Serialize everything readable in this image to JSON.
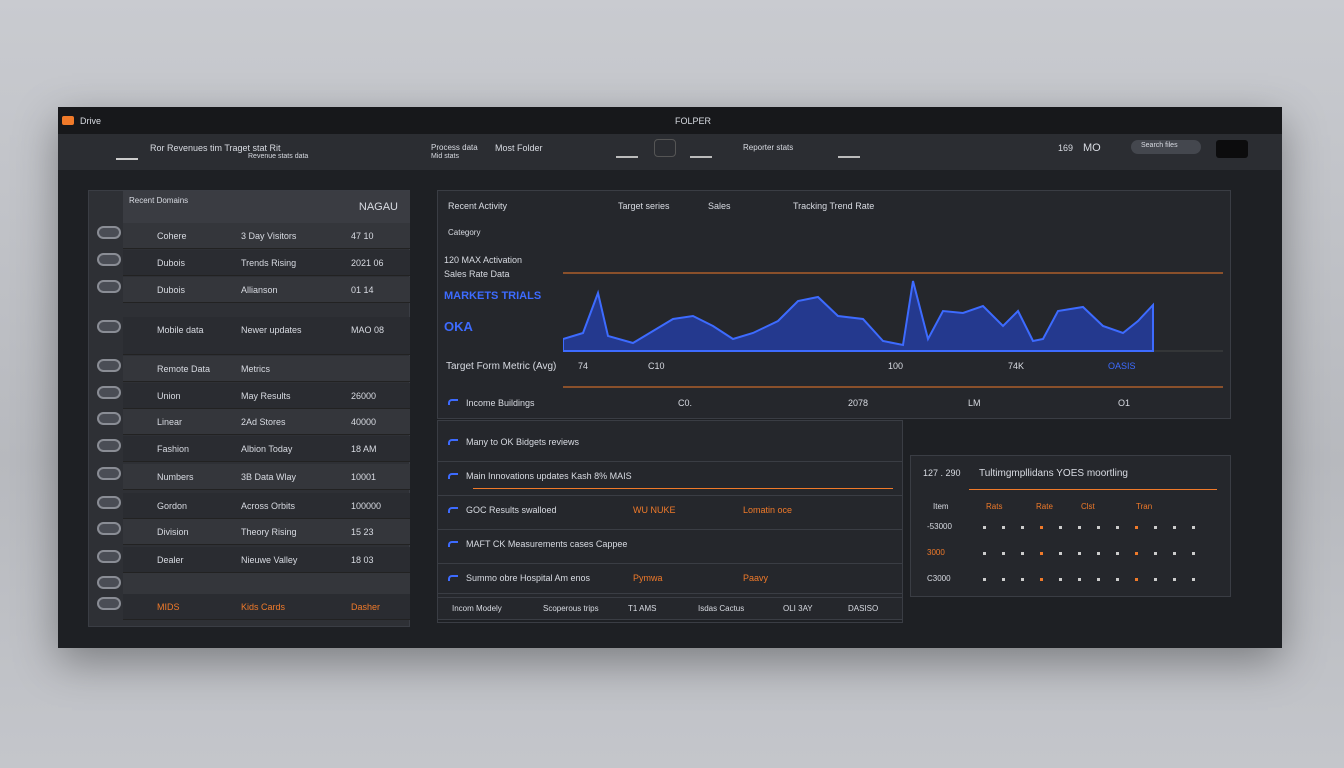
{
  "titlebar": {
    "app": "Drive",
    "title": "FOLPER"
  },
  "toolbar": {
    "title": "Ror Revenues tim Traget stat Rit",
    "subtitle": "Revenue stats data",
    "sub2": "Mid stats",
    "group": "Process data",
    "group2": "Most Folder",
    "filter": "Reporter stats",
    "count": "169",
    "count2": "MO",
    "search": "Search files"
  },
  "sidebar": {
    "header": "Recent Domains",
    "header_value": "NAGAU",
    "rows": [
      [
        "Cohere",
        "3 Day Visitors",
        "47 10"
      ],
      [
        "Dubois",
        "Trends Rising",
        "2021 06"
      ],
      [
        "Dubois",
        "Allianson",
        "01 14"
      ],
      [
        "Mobile data",
        "Newer updates",
        "MAO 08"
      ],
      [
        "Remote Data",
        "Metrics",
        ""
      ],
      [
        "Union",
        "May Results",
        "26000"
      ],
      [
        "Linear",
        "2Ad Stores",
        "40000"
      ],
      [
        "Fashion",
        "Albion Today",
        "18 AM"
      ],
      [
        "Numbers",
        "3B Data Wlay",
        "10001"
      ],
      [
        "Gordon",
        "Across Orbits",
        "100000"
      ],
      [
        "Division",
        "Theory Rising",
        "15 23"
      ],
      [
        "Dealer",
        "Nieuwe Valley",
        "18 03"
      ],
      [
        "",
        "",
        ""
      ],
      [
        "MIDS",
        "Kids Cards",
        "Dasher"
      ]
    ]
  },
  "chart": {
    "title": "Recent Activity",
    "legend": [
      "Target series",
      "Sales",
      "Tracking Trend Rate"
    ],
    "label": "Category",
    "annot": "120 MAX Activation",
    "annot2": "Sales Rate Data",
    "big": "MARKETS TRIALS",
    "big2": "OKA",
    "row_label": "Target Form Metric (Avg)",
    "row_values": [
      "74",
      "C10",
      "100",
      "74K",
      "OASIS"
    ],
    "footer": "Income Buildings",
    "footer_values": [
      "C0.",
      "2078",
      "LM",
      "O1"
    ]
  },
  "list": [
    {
      "text": "Many to OK Bidgets reviews",
      "extra": []
    },
    {
      "text": "Main Innovations updates Kash 8% MAIS",
      "extra": []
    },
    {
      "text": "GOC Results swalloed",
      "extra": [
        "WU NUKE",
        "Lomatin oce"
      ]
    },
    {
      "text": "MAFT CK Measurements cases Cappee",
      "extra": []
    },
    {
      "text": "Summo obre Hospital Am enos",
      "extra": [
        "Pymwa",
        "Paavy"
      ]
    }
  ],
  "list_footer": [
    "Incom Modely",
    "Scoperous trips",
    "T1 AMS",
    "Isdas Cactus",
    "OLI 3AY",
    "DASISO"
  ],
  "table": {
    "title": "Tultimgmpllidans YOES moortling",
    "id": "127 . 290",
    "headers": [
      "Item",
      "Rats",
      "Rate",
      "Clst",
      "Tran"
    ],
    "rows": [
      "-53000",
      "3000",
      "C3000"
    ]
  }
}
